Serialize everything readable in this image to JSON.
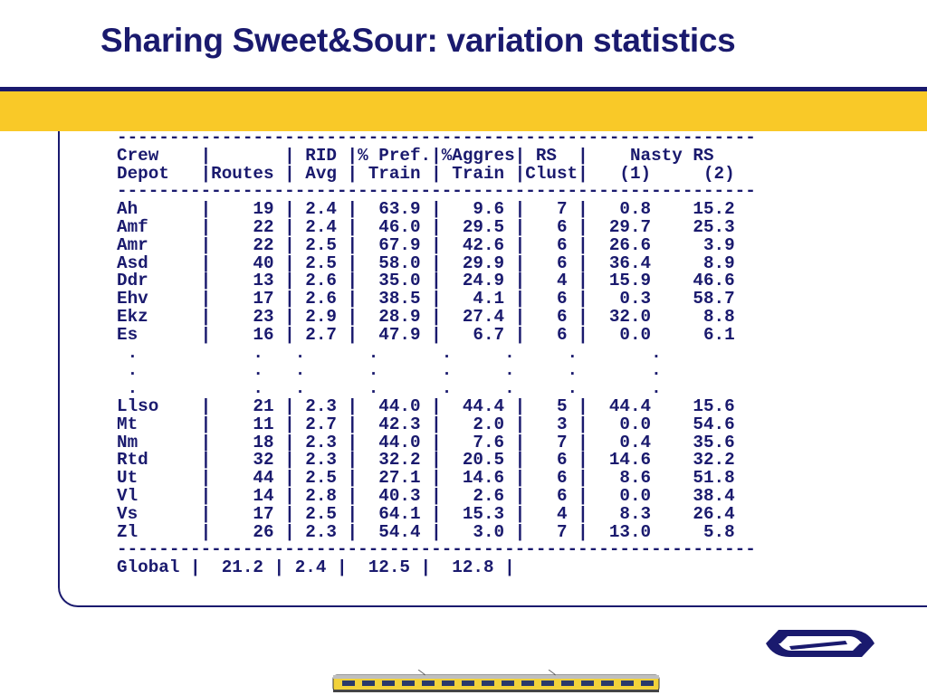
{
  "slide": {
    "title": "Sharing Sweet&Sour: variation statistics"
  },
  "table": {
    "separator": "-------------------------------------------------------------",
    "header_line_1": "Crew    |       | RID |% Pref.|%Aggres| RS  |    Nasty RS",
    "header_line_2": "Depot   |Routes | Avg | Train | Train |Clust|   (1)     (2)",
    "rows_top": [
      "Ah      |    19 | 2.4 |  63.9 |   9.6 |   7 |   0.8    15.2",
      "Amf     |    22 | 2.4 |  46.0 |  29.5 |   6 |  29.7    25.3",
      "Amr     |    22 | 2.5 |  67.9 |  42.6 |   6 |  26.6     3.9",
      "Asd     |    40 | 2.5 |  58.0 |  29.9 |   6 |  36.4     8.9",
      "Ddr     |    13 | 2.6 |  35.0 |  24.9 |   4 |  15.9    46.6",
      "Ehv     |    17 | 2.6 |  38.5 |   4.1 |   6 |   0.3    58.7",
      "Ekz     |    23 | 2.9 |  28.9 |  27.4 |   6 |  32.0     8.8",
      "Es      |    16 | 2.7 |  47.9 |   6.7 |   6 |   0.0     6.1"
    ],
    "ellipsis_rows": [
      " .           .   .      .      .     .     .       .",
      " .           .   .      .      .     .     .       .",
      " .           .   .      .      .     .     .       ."
    ],
    "rows_bottom": [
      "Llso    |    21 | 2.3 |  44.0 |  44.4 |   5 |  44.4    15.6",
      "Mt      |    11 | 2.7 |  42.3 |   2.0 |   3 |   0.0    54.6",
      "Nm      |    18 | 2.3 |  44.0 |   7.6 |   7 |   0.4    35.6",
      "Rtd     |    32 | 2.3 |  32.2 |  20.5 |   6 |  14.6    32.2",
      "Ut      |    44 | 2.5 |  27.1 |  14.6 |   6 |   8.6    51.8",
      "Vl      |    14 | 2.8 |  40.3 |   2.6 |   6 |   0.0    38.4",
      "Vs      |    17 | 2.5 |  64.1 |  15.3 |   4 |   8.3    26.4",
      "Zl      |    26 | 2.3 |  54.4 |   3.0 |   7 |  13.0     5.8"
    ],
    "global_line": "Global |  21.2 | 2.4 |  12.5 |  12.8 |"
  },
  "colors": {
    "navy": "#1a1a6e",
    "yellow": "#f9c928",
    "text": "#1a1a6e"
  },
  "icons": {
    "logo": "ns-railways-logo",
    "footer_image": "train-illustration"
  }
}
